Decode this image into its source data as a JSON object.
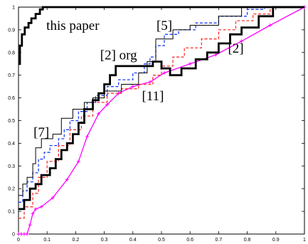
{
  "chart_data": {
    "type": "line",
    "title": "",
    "xlabel": "",
    "ylabel": "",
    "xlim": [
      0,
      1
    ],
    "ylim": [
      0,
      1
    ],
    "xticks": [
      "0",
      "0.1",
      "0.2",
      "0.3",
      "0.4",
      "0.5",
      "0.6",
      "0.7",
      "0.8",
      "0.9",
      "1"
    ],
    "yticks": [
      "0",
      "0.1",
      "0.2",
      "0.3",
      "0.4",
      "0.5",
      "0.6",
      "0.7",
      "0.8",
      "0.9",
      "1"
    ],
    "grid": false,
    "legend": "none",
    "series": [
      {
        "name": "this paper",
        "color": "#000000",
        "style": "bold-solid",
        "points": [
          [
            0,
            0.75
          ],
          [
            0.005,
            0.75
          ],
          [
            0.005,
            0.83
          ],
          [
            0.012,
            0.83
          ],
          [
            0.012,
            0.88
          ],
          [
            0.022,
            0.88
          ],
          [
            0.022,
            0.91
          ],
          [
            0.035,
            0.91
          ],
          [
            0.035,
            0.93
          ],
          [
            0.045,
            0.93
          ],
          [
            0.045,
            0.95
          ],
          [
            0.06,
            0.95
          ],
          [
            0.06,
            0.97
          ],
          [
            0.075,
            0.97
          ],
          [
            0.075,
            0.99
          ],
          [
            0.085,
            0.99
          ],
          [
            0.085,
            1
          ],
          [
            1,
            1
          ]
        ]
      },
      {
        "name": "[2] org",
        "color": "#000000",
        "style": "bold-solid",
        "points": [
          [
            0,
            0.11
          ],
          [
            0.02,
            0.11
          ],
          [
            0.02,
            0.15
          ],
          [
            0.04,
            0.15
          ],
          [
            0.04,
            0.2
          ],
          [
            0.06,
            0.2
          ],
          [
            0.06,
            0.22
          ],
          [
            0.08,
            0.22
          ],
          [
            0.08,
            0.26
          ],
          [
            0.11,
            0.26
          ],
          [
            0.11,
            0.29
          ],
          [
            0.13,
            0.29
          ],
          [
            0.13,
            0.33
          ],
          [
            0.15,
            0.33
          ],
          [
            0.15,
            0.37
          ],
          [
            0.17,
            0.37
          ],
          [
            0.17,
            0.4
          ],
          [
            0.19,
            0.4
          ],
          [
            0.19,
            0.44
          ],
          [
            0.21,
            0.44
          ],
          [
            0.21,
            0.49
          ],
          [
            0.23,
            0.49
          ],
          [
            0.23,
            0.55
          ],
          [
            0.26,
            0.55
          ],
          [
            0.26,
            0.59
          ],
          [
            0.28,
            0.59
          ],
          [
            0.28,
            0.62
          ],
          [
            0.3,
            0.62
          ],
          [
            0.3,
            0.66
          ],
          [
            0.32,
            0.66
          ],
          [
            0.32,
            0.7
          ],
          [
            0.34,
            0.7
          ],
          [
            0.34,
            0.74
          ],
          [
            0.47,
            0.74
          ],
          [
            0.47,
            0.76
          ],
          [
            0.5,
            0.76
          ],
          [
            0.5,
            0.73
          ],
          [
            0.53,
            0.73
          ],
          [
            0.53,
            0.7
          ],
          [
            0.57,
            0.7
          ],
          [
            0.57,
            0.73
          ],
          [
            0.62,
            0.73
          ],
          [
            0.62,
            0.77
          ],
          [
            0.66,
            0.77
          ],
          [
            0.66,
            0.8
          ],
          [
            0.7,
            0.8
          ],
          [
            0.7,
            0.84
          ],
          [
            0.74,
            0.84
          ],
          [
            0.74,
            0.88
          ],
          [
            0.78,
            0.88
          ],
          [
            0.78,
            0.91
          ],
          [
            0.84,
            0.91
          ],
          [
            0.84,
            0.96
          ],
          [
            0.89,
            0.96
          ],
          [
            0.89,
            1
          ],
          [
            1,
            1
          ]
        ]
      },
      {
        "name": "[5]",
        "color": "#1f3fff",
        "style": "dashed",
        "points": [
          [
            0,
            0.14
          ],
          [
            0.015,
            0.14
          ],
          [
            0.015,
            0.19
          ],
          [
            0.03,
            0.19
          ],
          [
            0.03,
            0.23
          ],
          [
            0.05,
            0.23
          ],
          [
            0.05,
            0.27
          ],
          [
            0.07,
            0.27
          ],
          [
            0.07,
            0.33
          ],
          [
            0.09,
            0.33
          ],
          [
            0.09,
            0.36
          ],
          [
            0.11,
            0.36
          ],
          [
            0.11,
            0.39
          ],
          [
            0.14,
            0.39
          ],
          [
            0.14,
            0.42
          ],
          [
            0.16,
            0.42
          ],
          [
            0.16,
            0.46
          ],
          [
            0.18,
            0.46
          ],
          [
            0.18,
            0.5
          ],
          [
            0.21,
            0.5
          ],
          [
            0.21,
            0.54
          ],
          [
            0.24,
            0.54
          ],
          [
            0.24,
            0.58
          ],
          [
            0.27,
            0.58
          ],
          [
            0.27,
            0.61
          ],
          [
            0.31,
            0.61
          ],
          [
            0.31,
            0.65
          ],
          [
            0.35,
            0.65
          ],
          [
            0.35,
            0.68
          ],
          [
            0.4,
            0.68
          ],
          [
            0.4,
            0.71
          ],
          [
            0.44,
            0.71
          ],
          [
            0.44,
            0.75
          ],
          [
            0.46,
            0.75
          ],
          [
            0.46,
            0.78
          ],
          [
            0.48,
            0.78
          ],
          [
            0.48,
            0.83
          ],
          [
            0.51,
            0.83
          ],
          [
            0.51,
            0.88
          ],
          [
            0.56,
            0.88
          ],
          [
            0.56,
            0.9
          ],
          [
            0.62,
            0.9
          ],
          [
            0.62,
            0.93
          ],
          [
            0.7,
            0.93
          ],
          [
            0.7,
            0.96
          ],
          [
            0.8,
            0.96
          ],
          [
            0.8,
            0.99
          ],
          [
            0.86,
            0.99
          ],
          [
            0.86,
            1
          ],
          [
            1,
            1
          ]
        ]
      },
      {
        "name": "[11]",
        "color": "#ff3030",
        "style": "dashed",
        "points": [
          [
            0,
            0.07
          ],
          [
            0.02,
            0.07
          ],
          [
            0.02,
            0.12
          ],
          [
            0.05,
            0.12
          ],
          [
            0.05,
            0.18
          ],
          [
            0.07,
            0.18
          ],
          [
            0.07,
            0.25
          ],
          [
            0.1,
            0.25
          ],
          [
            0.1,
            0.32
          ],
          [
            0.14,
            0.32
          ],
          [
            0.14,
            0.39
          ],
          [
            0.18,
            0.39
          ],
          [
            0.18,
            0.46
          ],
          [
            0.22,
            0.46
          ],
          [
            0.22,
            0.52
          ],
          [
            0.26,
            0.52
          ],
          [
            0.26,
            0.58
          ],
          [
            0.31,
            0.58
          ],
          [
            0.31,
            0.62
          ],
          [
            0.36,
            0.62
          ],
          [
            0.36,
            0.64
          ],
          [
            0.42,
            0.64
          ],
          [
            0.42,
            0.66
          ],
          [
            0.47,
            0.66
          ],
          [
            0.47,
            0.7
          ],
          [
            0.5,
            0.7
          ],
          [
            0.5,
            0.74
          ],
          [
            0.54,
            0.74
          ],
          [
            0.54,
            0.78
          ],
          [
            0.58,
            0.78
          ],
          [
            0.58,
            0.82
          ],
          [
            0.64,
            0.82
          ],
          [
            0.64,
            0.86
          ],
          [
            0.7,
            0.86
          ],
          [
            0.7,
            0.9
          ],
          [
            0.76,
            0.9
          ],
          [
            0.76,
            0.94
          ],
          [
            0.82,
            0.94
          ],
          [
            0.82,
            0.97
          ],
          [
            0.88,
            0.97
          ],
          [
            0.88,
            1
          ],
          [
            1,
            1
          ]
        ]
      },
      {
        "name": "[7]",
        "color": "#000000",
        "style": "thin-solid",
        "points": [
          [
            0,
            0.17
          ],
          [
            0.015,
            0.17
          ],
          [
            0.015,
            0.22
          ],
          [
            0.03,
            0.22
          ],
          [
            0.03,
            0.25
          ],
          [
            0.05,
            0.25
          ],
          [
            0.05,
            0.31
          ],
          [
            0.06,
            0.31
          ],
          [
            0.06,
            0.38
          ],
          [
            0.08,
            0.38
          ],
          [
            0.08,
            0.42
          ],
          [
            0.12,
            0.42
          ],
          [
            0.12,
            0.44
          ],
          [
            0.15,
            0.44
          ],
          [
            0.15,
            0.51
          ],
          [
            0.19,
            0.51
          ],
          [
            0.19,
            0.55
          ],
          [
            0.23,
            0.55
          ],
          [
            0.23,
            0.58
          ],
          [
            0.26,
            0.58
          ],
          [
            0.26,
            0.6
          ],
          [
            0.3,
            0.6
          ],
          [
            0.3,
            0.63
          ],
          [
            0.36,
            0.63
          ],
          [
            0.36,
            0.66
          ],
          [
            0.42,
            0.66
          ],
          [
            0.42,
            0.71
          ],
          [
            0.45,
            0.71
          ],
          [
            0.45,
            0.76
          ],
          [
            0.48,
            0.76
          ],
          [
            0.48,
            0.86
          ],
          [
            0.54,
            0.86
          ],
          [
            0.54,
            0.9
          ],
          [
            0.6,
            0.9
          ],
          [
            0.6,
            0.92
          ],
          [
            0.7,
            0.92
          ],
          [
            0.7,
            0.96
          ],
          [
            0.78,
            0.96
          ],
          [
            0.78,
            1
          ],
          [
            1,
            1
          ]
        ]
      },
      {
        "name": "[2]",
        "color": "#ff00ff",
        "style": "solid-markers",
        "points": [
          [
            0,
            0
          ],
          [
            0.01,
            0
          ],
          [
            0.02,
            0
          ],
          [
            0.03,
            0
          ],
          [
            0.04,
            0.04
          ],
          [
            0.05,
            0.09
          ],
          [
            0.06,
            0.11
          ],
          [
            0.08,
            0.12
          ],
          [
            0.12,
            0.16
          ],
          [
            0.17,
            0.24
          ],
          [
            0.21,
            0.32
          ],
          [
            0.24,
            0.43
          ],
          [
            0.28,
            0.53
          ],
          [
            0.31,
            0.57
          ],
          [
            0.35,
            0.62
          ],
          [
            0.4,
            0.65
          ],
          [
            0.46,
            0.67
          ],
          [
            0.51,
            0.71
          ],
          [
            0.6,
            0.75
          ],
          [
            0.69,
            0.79
          ],
          [
            0.78,
            0.85
          ],
          [
            0.88,
            0.92
          ],
          [
            1,
            1
          ]
        ]
      }
    ],
    "annotations": [
      {
        "text": "this paper",
        "x": 0.19,
        "y": 0.9
      },
      {
        "text": "[5]",
        "x": 0.51,
        "y": 0.9
      },
      {
        "text": "[2] org",
        "x": 0.35,
        "y": 0.77
      },
      {
        "text": "[2]",
        "x": 0.76,
        "y": 0.8
      },
      {
        "text": "[11]",
        "x": 0.47,
        "y": 0.59
      },
      {
        "text": "[7]",
        "x": 0.08,
        "y": 0.43
      }
    ]
  }
}
